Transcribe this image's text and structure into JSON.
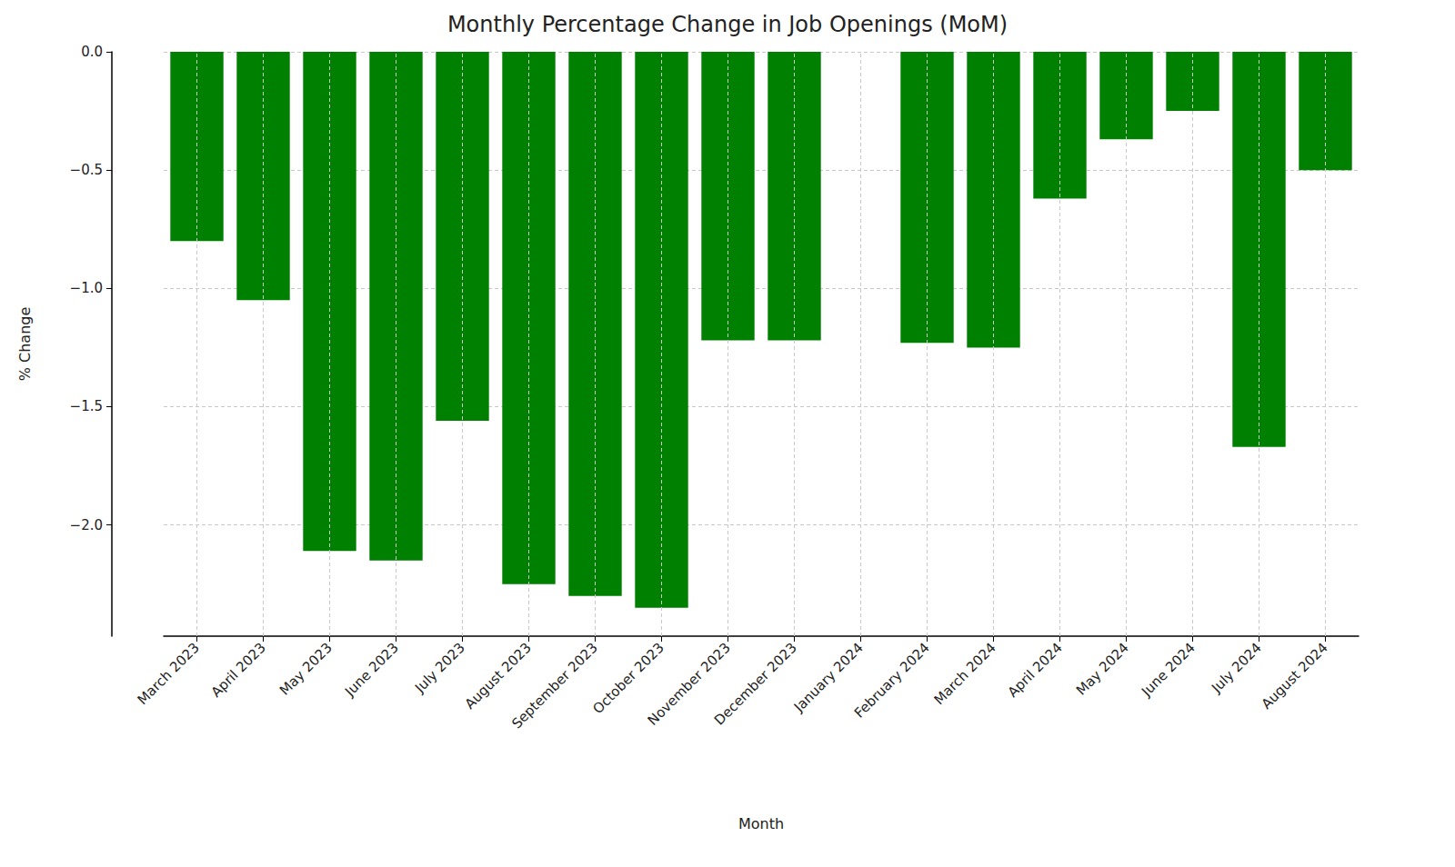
{
  "chart_data": {
    "type": "bar",
    "title": "Monthly Percentage Change in Job Openings (MoM)",
    "x_label": "Month",
    "y_label": "% Change",
    "categories": [
      "March 2023",
      "April 2023",
      "May 2023",
      "June 2023",
      "July 2023",
      "August 2023",
      "September 2023",
      "October 2023",
      "November 2023",
      "December 2023",
      "January 2024",
      "February 2024",
      "March 2024",
      "April 2024",
      "May 2024",
      "June 2024",
      "July 2024",
      "August 2024"
    ],
    "values": [
      -0.8,
      -1.05,
      -2.11,
      -2.15,
      -1.56,
      -2.25,
      -2.3,
      -2.35,
      -1.22,
      -1.22,
      null,
      -1.23,
      -1.25,
      -0.62,
      -0.37,
      -0.25,
      -1.67,
      -0.5
    ],
    "color": "#008000",
    "ylim": [
      -2.47,
      0
    ],
    "yticks": [
      {
        "value": 0,
        "label": "0.0"
      },
      {
        "value": -0.5,
        "label": "−0.5"
      },
      {
        "value": -1.0,
        "label": "−1.0"
      },
      {
        "value": -1.5,
        "label": "−1.5"
      },
      {
        "value": -2.0,
        "label": "−2.0"
      }
    ],
    "grid": true
  }
}
